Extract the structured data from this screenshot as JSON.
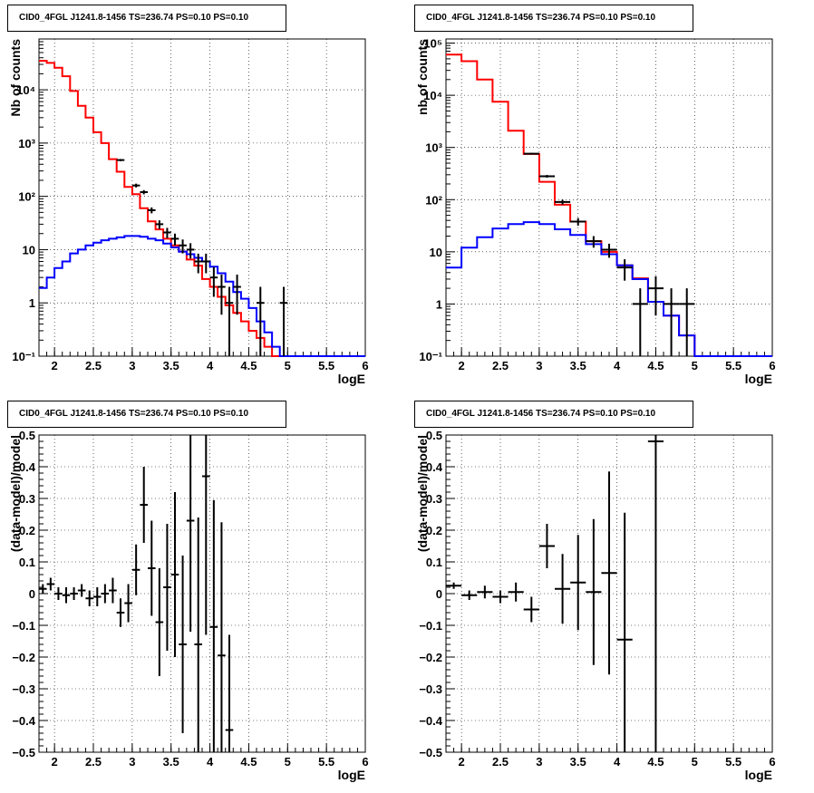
{
  "chart_data": [
    {
      "id": "spectrum-left",
      "type": "line",
      "title": "CID0_4FGL J1241.8-1456 TS=236.74 PS=0.10 PS=0.10",
      "xlabel": "logE",
      "ylabel": "Nb of counts",
      "log_y": true,
      "xlim": [
        1.8,
        6.0
      ],
      "ylim": [
        0.1,
        90000
      ],
      "x_ticks": [
        "2",
        "2.5",
        "3",
        "3.5",
        "4",
        "4.5",
        "5",
        "5.5",
        "6"
      ],
      "y_ticks": [
        "10⁻¹",
        "1",
        "10",
        "10²",
        "10³",
        "10⁴"
      ],
      "grid": true,
      "bin_edges": [
        1.8,
        1.9,
        2.0,
        2.1,
        2.2,
        2.3,
        2.4,
        2.5,
        2.6,
        2.7,
        2.8,
        2.9,
        3.0,
        3.1,
        3.2,
        3.3,
        3.4,
        3.5,
        3.6,
        3.7,
        3.8,
        3.9,
        4.0,
        4.1,
        4.2,
        4.3,
        4.4,
        4.5,
        4.6,
        4.7,
        4.8,
        4.9,
        5.0,
        5.1,
        5.2,
        5.3,
        5.4,
        5.5,
        5.6,
        5.7,
        5.8,
        5.9,
        6.0
      ],
      "series": [
        {
          "color": "#ff0000",
          "values": [
            35000,
            32000,
            26000,
            18000,
            9500,
            5000,
            3000,
            1600,
            1000,
            500,
            290,
            150,
            110,
            60,
            34,
            24,
            16,
            12,
            9.2,
            6.5,
            5.0,
            2.8,
            2.0,
            1.3,
            0.9,
            0.65,
            0.45,
            0.3,
            0.22,
            0.15,
            0.1,
            0.1,
            0.1,
            0.1,
            0.1,
            0.1,
            0.1,
            0.1,
            0.1,
            0.1,
            0.1,
            0.1
          ]
        },
        {
          "color": "#0000ff",
          "values": [
            1.9,
            3.0,
            4.5,
            6.0,
            8.5,
            10,
            12,
            13.5,
            15,
            16,
            17,
            18,
            18,
            17.5,
            16,
            15,
            13,
            11,
            9.2,
            8.2,
            7.0,
            6.0,
            4.8,
            3.6,
            2.5,
            1.6,
            1.2,
            0.8,
            0.45,
            0.28,
            0.15,
            0.1,
            0.1,
            0.1,
            0.1,
            0.1,
            0.1,
            0.1,
            0.1,
            0.1,
            0.1,
            0.1
          ]
        },
        {
          "color": "#000000",
          "style": "errorbar",
          "points": [
            {
              "x": 2.85,
              "y": 480,
              "err": 22
            },
            {
              "x": 3.05,
              "y": 160,
              "err": 13
            },
            {
              "x": 3.15,
              "y": 120,
              "err": 11
            },
            {
              "x": 3.25,
              "y": 55,
              "err": 7
            },
            {
              "x": 3.35,
              "y": 30,
              "err": 5.5
            },
            {
              "x": 3.45,
              "y": 21,
              "err": 4.6
            },
            {
              "x": 3.55,
              "y": 16,
              "err": 4
            },
            {
              "x": 3.65,
              "y": 12,
              "err": 3.5
            },
            {
              "x": 3.75,
              "y": 10,
              "err": 3.2
            },
            {
              "x": 3.85,
              "y": 6,
              "err": 2.4
            },
            {
              "x": 3.95,
              "y": 6,
              "err": 2.4
            },
            {
              "x": 4.05,
              "y": 3,
              "err": 1.7
            },
            {
              "x": 4.15,
              "y": 2,
              "err": 1.4
            },
            {
              "x": 4.25,
              "y": 1,
              "err": 1
            },
            {
              "x": 4.35,
              "y": 2,
              "err": 1.4
            },
            {
              "x": 4.65,
              "y": 1,
              "err": 1
            },
            {
              "x": 4.95,
              "y": 1,
              "err": 1
            }
          ]
        }
      ]
    },
    {
      "id": "spectrum-right",
      "type": "line",
      "title": "CID0_4FGL J1241.8-1456 TS=236.74 PS=0.10 PS=0.10",
      "xlabel": "logE",
      "ylabel": "nb of counts",
      "log_y": true,
      "xlim": [
        1.8,
        6.0
      ],
      "ylim": [
        0.1,
        120000
      ],
      "x_ticks": [
        "2",
        "2.5",
        "3",
        "3.5",
        "4",
        "4.5",
        "5",
        "5.5",
        "6"
      ],
      "y_ticks": [
        "10⁻¹",
        "1",
        "10",
        "10²",
        "10³",
        "10⁴",
        "10⁵"
      ],
      "grid": true,
      "bin_edges": [
        1.8,
        2.0,
        2.2,
        2.4,
        2.6,
        2.8,
        3.0,
        3.2,
        3.4,
        3.6,
        3.8,
        4.0,
        4.2,
        4.4,
        4.6,
        4.8,
        5.0,
        5.2,
        5.4,
        5.6,
        5.8,
        6.0
      ],
      "series": [
        {
          "color": "#ff0000",
          "values": [
            60000,
            45000,
            20000,
            7500,
            2100,
            750,
            220,
            80,
            38,
            16,
            10,
            5.5,
            3.1,
            1.1,
            0.6,
            0.25,
            0.1,
            0.1,
            0.1,
            0.1,
            0.1
          ]
        },
        {
          "color": "#0000ff",
          "values": [
            5,
            12,
            19,
            28,
            34,
            37,
            34,
            27,
            21,
            14,
            9,
            5.5,
            3.0,
            1.1,
            0.6,
            0.25,
            0.1,
            0.1,
            0.1,
            0.1,
            0.1
          ]
        },
        {
          "color": "#000000",
          "style": "errorbar",
          "points": [
            {
              "x": 2.9,
              "y": 760,
              "err": 28
            },
            {
              "x": 3.1,
              "y": 280,
              "err": 17
            },
            {
              "x": 3.3,
              "y": 90,
              "err": 9.5
            },
            {
              "x": 3.5,
              "y": 38,
              "err": 6.2
            },
            {
              "x": 3.7,
              "y": 16,
              "err": 4
            },
            {
              "x": 3.9,
              "y": 11,
              "err": 3.3
            },
            {
              "x": 4.1,
              "y": 5,
              "err": 2.2
            },
            {
              "x": 4.3,
              "y": 1,
              "err": 1
            },
            {
              "x": 4.5,
              "y": 2,
              "err": 1.4
            },
            {
              "x": 4.7,
              "y": 1,
              "err": 1
            },
            {
              "x": 4.9,
              "y": 1,
              "err": 1
            }
          ]
        }
      ]
    },
    {
      "id": "residual-left",
      "type": "scatter",
      "title": "CID0_4FGL J1241.8-1456 TS=236.74 PS=0.10 PS=0.10",
      "xlabel": "logE",
      "ylabel": "(data-model)/model",
      "xlim": [
        1.8,
        6.0
      ],
      "ylim": [
        -0.5,
        0.5
      ],
      "x_ticks": [
        "2",
        "2.5",
        "3",
        "3.5",
        "4",
        "4.5",
        "5",
        "5.5",
        "6"
      ],
      "y_ticks": [
        "−0.5",
        "−0.4",
        "−0.3",
        "−0.2",
        "−0.1",
        "0",
        "0.1",
        "0.2",
        "0.3",
        "0.4",
        "0.5"
      ],
      "grid": true,
      "xerr": 0.05,
      "points": [
        {
          "x": 1.85,
          "y": 0.015,
          "err": 0.015
        },
        {
          "x": 1.95,
          "y": 0.03,
          "err": 0.02
        },
        {
          "x": 2.05,
          "y": 0.0,
          "err": 0.02
        },
        {
          "x": 2.15,
          "y": -0.005,
          "err": 0.025
        },
        {
          "x": 2.25,
          "y": 0.0,
          "err": 0.02
        },
        {
          "x": 2.35,
          "y": 0.01,
          "err": 0.02
        },
        {
          "x": 2.45,
          "y": -0.015,
          "err": 0.025
        },
        {
          "x": 2.55,
          "y": -0.01,
          "err": 0.03
        },
        {
          "x": 2.65,
          "y": 0.0,
          "err": 0.03
        },
        {
          "x": 2.75,
          "y": 0.01,
          "err": 0.04
        },
        {
          "x": 2.85,
          "y": -0.06,
          "err": 0.045
        },
        {
          "x": 2.95,
          "y": -0.03,
          "err": 0.06
        },
        {
          "x": 3.05,
          "y": 0.075,
          "err": 0.08
        },
        {
          "x": 3.15,
          "y": 0.28,
          "err": 0.12
        },
        {
          "x": 3.25,
          "y": 0.08,
          "err": 0.15
        },
        {
          "x": 3.35,
          "y": -0.09,
          "err": 0.17
        },
        {
          "x": 3.45,
          "y": 0.02,
          "err": 0.2
        },
        {
          "x": 3.55,
          "y": 0.06,
          "err": 0.26
        },
        {
          "x": 3.65,
          "y": -0.16,
          "err": 0.28
        },
        {
          "x": 3.75,
          "y": 0.23,
          "err": 0.35
        },
        {
          "x": 3.85,
          "y": -0.16,
          "err": 0.4
        },
        {
          "x": 3.95,
          "y": 0.37,
          "err": 0.5
        },
        {
          "x": 4.05,
          "y": -0.105,
          "err": 0.4
        },
        {
          "x": 4.15,
          "y": -0.195,
          "err": 0.42
        },
        {
          "x": 4.25,
          "y": -0.43,
          "err": 0.3
        }
      ]
    },
    {
      "id": "residual-right",
      "type": "scatter",
      "title": "CID0_4FGL J1241.8-1456 TS=236.74 PS=0.10 PS=0.10",
      "xlabel": "logE",
      "ylabel": "(data-model)/model",
      "xlim": [
        1.8,
        6.0
      ],
      "ylim": [
        -0.5,
        0.5
      ],
      "x_ticks": [
        "2",
        "2.5",
        "3",
        "3.5",
        "4",
        "4.5",
        "5",
        "5.5",
        "6"
      ],
      "y_ticks": [
        "−0.5",
        "−0.4",
        "−0.3",
        "−0.2",
        "−0.1",
        "0",
        "0.1",
        "0.2",
        "0.3",
        "0.4",
        "0.5"
      ],
      "grid": true,
      "xerr": 0.1,
      "points": [
        {
          "x": 1.9,
          "y": 0.025,
          "err": 0.01
        },
        {
          "x": 2.1,
          "y": -0.005,
          "err": 0.015
        },
        {
          "x": 2.3,
          "y": 0.005,
          "err": 0.02
        },
        {
          "x": 2.5,
          "y": -0.01,
          "err": 0.02
        },
        {
          "x": 2.7,
          "y": 0.005,
          "err": 0.03
        },
        {
          "x": 2.9,
          "y": -0.05,
          "err": 0.04
        },
        {
          "x": 3.1,
          "y": 0.15,
          "err": 0.07
        },
        {
          "x": 3.3,
          "y": 0.015,
          "err": 0.11
        },
        {
          "x": 3.5,
          "y": 0.035,
          "err": 0.15
        },
        {
          "x": 3.7,
          "y": 0.005,
          "err": 0.23
        },
        {
          "x": 3.9,
          "y": 0.065,
          "err": 0.32
        },
        {
          "x": 4.1,
          "y": -0.145,
          "err": 0.4
        },
        {
          "x": 4.5,
          "y": 0.48,
          "err": 1.0
        }
      ]
    }
  ]
}
